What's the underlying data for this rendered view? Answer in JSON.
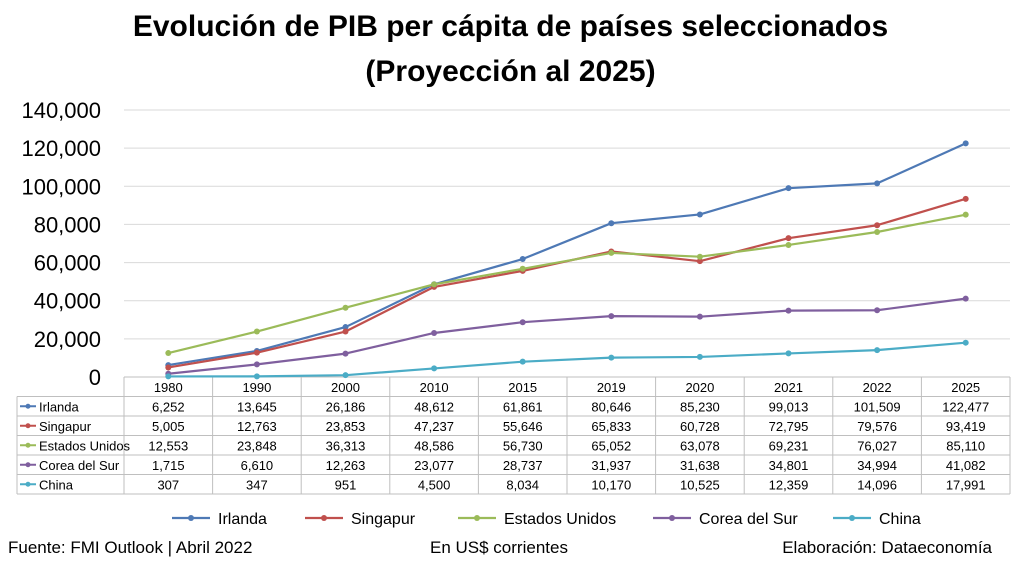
{
  "header": {
    "title_line1": "Evolución de PIB per cápita de países seleccionados",
    "title_line2": "(Proyección al 2025)"
  },
  "footer": {
    "source": "Fuente: FMI Outlook | Abril 2022",
    "units": "En US$ corrientes",
    "credit": "Elaboración: Dataeconomía"
  },
  "chart_data": {
    "type": "line",
    "title": "Evolución de PIB per cápita de países seleccionados (Proyección al 2025)",
    "categories": [
      "1980",
      "1990",
      "2000",
      "2010",
      "2015",
      "2019",
      "2020",
      "2021",
      "2022",
      "2025"
    ],
    "ylim": [
      0,
      140000
    ],
    "yticks": [
      0,
      20000,
      40000,
      60000,
      80000,
      100000,
      120000,
      140000
    ],
    "ytick_labels": [
      "0",
      "20,000",
      "40,000",
      "60,000",
      "80,000",
      "100,000",
      "120,000",
      "140,000"
    ],
    "grid": "horizontal",
    "legend_position": "bottom",
    "has_data_table": true,
    "series": [
      {
        "name": "Irlanda",
        "color": "#4E79B5",
        "values": [
          6252,
          13645,
          26186,
          48612,
          61861,
          80646,
          85230,
          99013,
          101509,
          122477
        ],
        "labels": [
          "6,252",
          "13,645",
          "26,186",
          "48,612",
          "61,861",
          "80,646",
          "85,230",
          "99,013",
          "101,509",
          "122,477"
        ]
      },
      {
        "name": "Singapur",
        "color": "#C0504D",
        "values": [
          5005,
          12763,
          23853,
          47237,
          55646,
          65833,
          60728,
          72795,
          79576,
          93419
        ],
        "labels": [
          "5,005",
          "12,763",
          "23,853",
          "47,237",
          "55,646",
          "65,833",
          "60,728",
          "72,795",
          "79,576",
          "93,419"
        ]
      },
      {
        "name": "Estados Unidos",
        "color": "#9BBB59",
        "values": [
          12553,
          23848,
          36313,
          48586,
          56730,
          65052,
          63078,
          69231,
          76027,
          85110
        ],
        "labels": [
          "12,553",
          "23,848",
          "36,313",
          "48,586",
          "56,730",
          "65,052",
          "63,078",
          "69,231",
          "76,027",
          "85,110"
        ]
      },
      {
        "name": "Corea del Sur",
        "color": "#7F5F9E",
        "values": [
          1715,
          6610,
          12263,
          23077,
          28737,
          31937,
          31638,
          34801,
          34994,
          41082
        ],
        "labels": [
          "1,715",
          "6,610",
          "12,263",
          "23,077",
          "28,737",
          "31,937",
          "31,638",
          "34,801",
          "34,994",
          "41,082"
        ]
      },
      {
        "name": "China",
        "color": "#4BACC6",
        "values": [
          307,
          347,
          951,
          4500,
          8034,
          10170,
          10525,
          12359,
          14096,
          17991
        ],
        "labels": [
          "307",
          "347",
          "951",
          "4,500",
          "8,034",
          "10,170",
          "10,525",
          "12,359",
          "14,096",
          "17,991"
        ]
      }
    ]
  }
}
